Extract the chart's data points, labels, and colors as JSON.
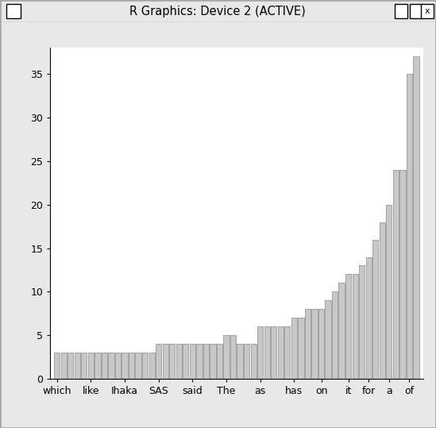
{
  "title": "R Graphics: Device 2 (ACTIVE)",
  "bar_color": "#c8c8c8",
  "bar_edge_color": "#707070",
  "window_bg": "#e8e8e8",
  "plot_bg_color": "#ffffff",
  "yticks": [
    0,
    5,
    10,
    15,
    20,
    25,
    30,
    35
  ],
  "ylim": [
    0,
    38
  ],
  "xlabel_labels": [
    "which",
    "like",
    "Ihaka",
    "SAS",
    "said",
    "The",
    "as",
    "has",
    "on",
    "it",
    "for",
    "a",
    "of"
  ],
  "values": [
    3,
    3,
    3,
    3,
    3,
    3,
    3,
    3,
    3,
    3,
    3,
    3,
    3,
    3,
    3,
    4,
    4,
    4,
    4,
    4,
    4,
    4,
    4,
    4,
    4,
    5,
    5,
    4,
    4,
    4,
    6,
    6,
    6,
    6,
    6,
    7,
    7,
    8,
    8,
    8,
    9,
    10,
    11,
    12,
    12,
    13,
    14,
    16,
    18,
    20,
    24,
    24,
    35,
    37
  ],
  "xlabel_positions_1indexed": [
    1,
    6,
    11,
    16,
    21,
    26,
    31,
    36,
    40,
    44,
    47,
    50,
    53
  ]
}
